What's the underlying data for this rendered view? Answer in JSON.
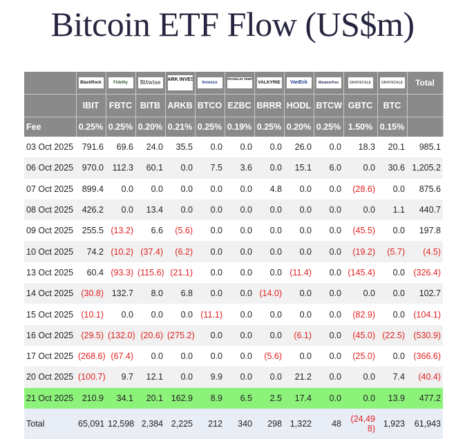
{
  "title": "Bitcoin ETF Flow (US$m)",
  "logos": [
    "BlackRock",
    "Fidelity",
    "Bitwise",
    "ARK INVEST",
    "Invesco",
    "FRANKLIN TEMPLETON",
    "VALKYRIE",
    "VanEck",
    "WisdomTree",
    "GRAYSCALE",
    "GRAYSCALE"
  ],
  "total_label": "Total",
  "tickers": [
    "IBIT",
    "FBTC",
    "BITB",
    "ARKB",
    "BTCO",
    "EZBC",
    "BRRR",
    "HODL",
    "BTCW",
    "GBTC",
    "BTC"
  ],
  "fee_label": "Fee",
  "fees": [
    "0.25%",
    "0.25%",
    "0.20%",
    "0.21%",
    "0.25%",
    "0.19%",
    "0.25%",
    "0.20%",
    "0.25%",
    "1.50%",
    "0.15%"
  ],
  "rows": [
    {
      "date": "03 Oct 2025",
      "values": [
        "791.6",
        "69.6",
        "24.0",
        "35.5",
        "0.0",
        "0.0",
        "0.0",
        "26.0",
        "0.0",
        "18.3",
        "20.1"
      ],
      "total": "985.1"
    },
    {
      "date": "06 Oct 2025",
      "values": [
        "970.0",
        "112.3",
        "60.1",
        "0.0",
        "7.5",
        "3.6",
        "0.0",
        "15.1",
        "6.0",
        "0.0",
        "30.6"
      ],
      "total": "1,205.2"
    },
    {
      "date": "07 Oct 2025",
      "values": [
        "899.4",
        "0.0",
        "0.0",
        "0.0",
        "0.0",
        "0.0",
        "4.8",
        "0.0",
        "0.0",
        "(28.6)",
        "0.0"
      ],
      "total": "875.6"
    },
    {
      "date": "08 Oct 2025",
      "values": [
        "426.2",
        "0.0",
        "13.4",
        "0.0",
        "0.0",
        "0.0",
        "0.0",
        "0.0",
        "0.0",
        "0.0",
        "1.1"
      ],
      "total": "440.7"
    },
    {
      "date": "09 Oct 2025",
      "values": [
        "255.5",
        "(13.2)",
        "6.6",
        "(5.6)",
        "0.0",
        "0.0",
        "0.0",
        "0.0",
        "0.0",
        "(45.5)",
        "0.0"
      ],
      "total": "197.8"
    },
    {
      "date": "10 Oct 2025",
      "values": [
        "74.2",
        "(10.2)",
        "(37.4)",
        "(6.2)",
        "0.0",
        "0.0",
        "0.0",
        "0.0",
        "0.0",
        "(19.2)",
        "(5.7)"
      ],
      "total": "(4.5)"
    },
    {
      "date": "13 Oct 2025",
      "values": [
        "60.4",
        "(93.3)",
        "(115.6)",
        "(21.1)",
        "0.0",
        "0.0",
        "0.0",
        "(11.4)",
        "0.0",
        "(145.4)",
        "0.0"
      ],
      "total": "(326.4)"
    },
    {
      "date": "14 Oct 2025",
      "values": [
        "(30.8)",
        "132.7",
        "8.0",
        "6.8",
        "0.0",
        "0.0",
        "(14.0)",
        "0.0",
        "0.0",
        "0.0",
        "0.0"
      ],
      "total": "102.7"
    },
    {
      "date": "15 Oct 2025",
      "values": [
        "(10.1)",
        "0.0",
        "0.0",
        "0.0",
        "(11.1)",
        "0.0",
        "0.0",
        "0.0",
        "0.0",
        "(82.9)",
        "0.0"
      ],
      "total": "(104.1)"
    },
    {
      "date": "16 Oct 2025",
      "values": [
        "(29.5)",
        "(132.0)",
        "(20.6)",
        "(275.2)",
        "0.0",
        "0.0",
        "0.0",
        "(6.1)",
        "0.0",
        "(45.0)",
        "(22.5)"
      ],
      "total": "(530.9)"
    },
    {
      "date": "17 Oct 2025",
      "values": [
        "(268.6)",
        "(67.4)",
        "0.0",
        "0.0",
        "0.0",
        "0.0",
        "(5.6)",
        "0.0",
        "0.0",
        "(25.0)",
        "0.0"
      ],
      "total": "(366.6)"
    },
    {
      "date": "20 Oct 2025",
      "values": [
        "(100.7)",
        "9.7",
        "12.1",
        "0.0",
        "9.9",
        "0.0",
        "0.0",
        "21.2",
        "0.0",
        "0.0",
        "7.4"
      ],
      "total": "(40.4)"
    },
    {
      "date": "21 Oct 2025",
      "values": [
        "210.9",
        "34.1",
        "20.1",
        "162.9",
        "8.9",
        "6.5",
        "2.5",
        "17.4",
        "0.0",
        "0.0",
        "13.9"
      ],
      "total": "477.2",
      "highlight": true
    }
  ],
  "totals": {
    "label": "Total",
    "values": [
      "65,091",
      "12,598",
      "2,384",
      "2,225",
      "212",
      "340",
      "298",
      "1,322",
      "48",
      "(24,498)",
      "1,923"
    ],
    "total": "61,943"
  },
  "colors": {
    "header_bg": "#8a8a8a",
    "negative": "#e02020",
    "highlight": "#8cf27a",
    "total_bg": "#e8edf6"
  }
}
